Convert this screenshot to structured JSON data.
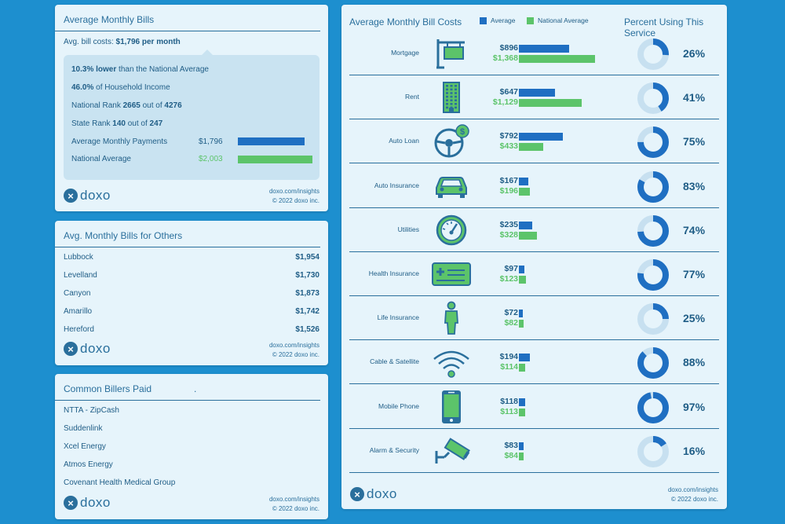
{
  "colors": {
    "average": "#1f6fc2",
    "national": "#5cc46a",
    "donut_bg": "#c7e0f0",
    "donut_fg": "#1f6fc2"
  },
  "brand": {
    "logo_mark": "×",
    "logo_text": "doxo",
    "footer_url": "doxo.com/insights",
    "footer_copy": "© 2022 doxo inc."
  },
  "summary": {
    "title": "Average Monthly Bills",
    "avg_prefix": "Avg. bill costs: ",
    "avg_value": "$1,796 per month",
    "lower_value": "10.3% lower",
    "lower_suffix": " than the National Average",
    "income_value": "46.0%",
    "income_suffix": " of Household Income",
    "nat_rank_prefix": "National Rank ",
    "nat_rank": "2665",
    "nat_rank_mid": " out of ",
    "nat_rank_total": "4276",
    "state_rank_prefix": "State Rank ",
    "state_rank": "140",
    "state_rank_mid": " out of ",
    "state_rank_total": "247",
    "payments_label": "Average Monthly Payments",
    "payments_value": "$1,796",
    "payments_amount": 1796,
    "national_label": "National Average",
    "national_value": "$2,003",
    "national_amount": 2003
  },
  "others": {
    "title": "Avg. Monthly Bills for Others",
    "cities": [
      {
        "name": "Lubbock",
        "value": "$1,954"
      },
      {
        "name": "Levelland",
        "value": "$1,730"
      },
      {
        "name": "Canyon",
        "value": "$1,873"
      },
      {
        "name": "Amarillo",
        "value": "$1,742"
      },
      {
        "name": "Hereford",
        "value": "$1,526"
      }
    ]
  },
  "billers": {
    "title": "Common Billers Paid",
    "title_suffix": ".",
    "items": [
      "NTTA - ZipCash",
      "Suddenlink",
      "Xcel Energy",
      "Atmos Energy",
      "Covenant Health Medical Group"
    ]
  },
  "costs": {
    "title": "Average Monthly Bill Costs",
    "legend_average": "Average",
    "legend_national": "National Average",
    "percent_title": "Percent Using This Service"
  },
  "chart_data": {
    "type": "bar",
    "title": "Average Monthly Bill Costs",
    "categories": [
      "Mortgage",
      "Rent",
      "Auto Loan",
      "Auto Insurance",
      "Utilities",
      "Health Insurance",
      "Life Insurance",
      "Cable & Satellite",
      "Mobile Phone",
      "Alarm & Security"
    ],
    "icons": [
      "house-sign-icon",
      "building-icon",
      "steering-wheel-icon",
      "car-icon",
      "gauge-icon",
      "health-card-icon",
      "person-icon",
      "wifi-icon",
      "mobile-phone-icon",
      "security-camera-icon"
    ],
    "series": [
      {
        "name": "Average",
        "values": [
          896,
          647,
          792,
          167,
          235,
          97,
          72,
          194,
          118,
          83
        ],
        "labels": [
          "$896",
          "$647",
          "$792",
          "$167",
          "$235",
          "$97",
          "$72",
          "$194",
          "$118",
          "$83"
        ]
      },
      {
        "name": "National Average",
        "values": [
          1368,
          1129,
          433,
          196,
          328,
          123,
          82,
          114,
          113,
          84
        ],
        "labels": [
          "$1,368",
          "$1,129",
          "$433",
          "$196",
          "$328",
          "$123",
          "$82",
          "$114",
          "$113",
          "$84"
        ]
      }
    ],
    "percent_using": [
      26,
      41,
      75,
      83,
      74,
      77,
      25,
      88,
      97,
      16
    ],
    "percent_labels": [
      "26%",
      "41%",
      "75%",
      "83%",
      "74%",
      "77%",
      "25%",
      "88%",
      "97%",
      "16%"
    ],
    "legend_position": "top"
  }
}
